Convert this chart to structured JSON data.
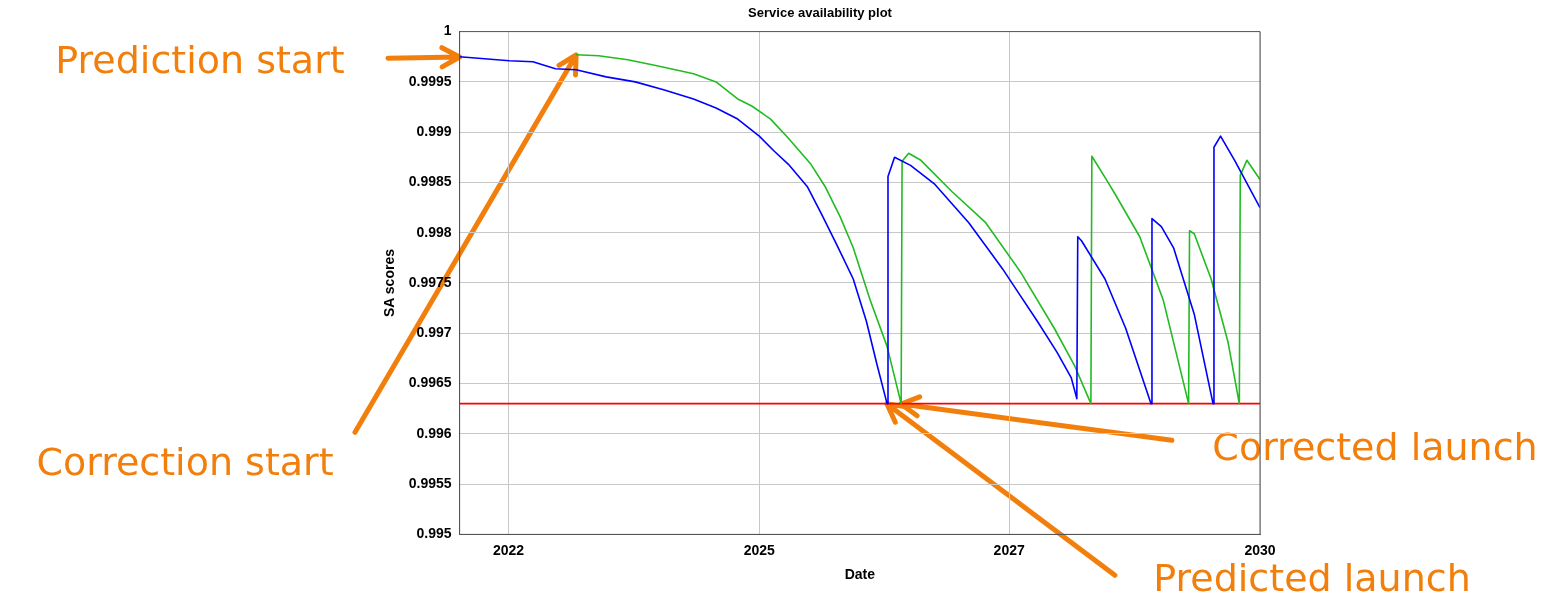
{
  "chart_data": {
    "type": "line",
    "title": "Service availability plot",
    "xlabel": "Date",
    "ylabel": "SA scores",
    "xlim": [
      2021.48,
      2030
    ],
    "xticks": [
      2022,
      {
        "value": 2024.67,
        "label": "2025"
      },
      {
        "value": 2027.33,
        "label": "2027"
      },
      2030
    ],
    "ylim": [
      0.995,
      1
    ],
    "yticks": [
      0.995,
      0.9955,
      0.996,
      0.9965,
      0.997,
      0.9975,
      0.998,
      0.9985,
      0.999,
      0.9995,
      1
    ],
    "grid": true,
    "legend": false,
    "marker": "none",
    "series": [
      {
        "color": "#0000ff",
        "x": [
          2021.48,
          2022.01,
          2022.26,
          2022.5,
          2022.72,
          2023.04,
          2023.35,
          2023.66,
          2023.97,
          2024.21,
          2024.44,
          2024.67,
          2024.83,
          2024.98,
          2025.18,
          2025.33,
          2025.49,
          2025.67,
          2025.81,
          2025.92,
          2026.03,
          2026.04,
          2026.11,
          2026.28,
          2026.54,
          2026.9,
          2027.26,
          2027.63,
          2027.84,
          2027.99,
          2028.05,
          2028.06,
          2028.1,
          2028.35,
          2028.57,
          2028.84,
          2028.85,
          2028.95,
          2029.08,
          2029.3,
          2029.5,
          2029.51,
          2029.58,
          2029.73,
          2030
        ],
        "values": [
          0.99975,
          0.99971,
          0.9997,
          0.99963,
          0.99962,
          0.99955,
          0.9995,
          0.99942,
          0.99933,
          0.99924,
          0.99913,
          0.99896,
          0.99881,
          0.99868,
          0.99846,
          0.99819,
          0.99789,
          0.99754,
          0.99712,
          0.9967,
          0.9963,
          0.99856,
          0.99875,
          0.99867,
          0.99848,
          0.9981,
          0.99764,
          0.99712,
          0.99681,
          0.99656,
          0.99635,
          0.99796,
          0.99792,
          0.99754,
          0.99705,
          0.9963,
          0.99814,
          0.99806,
          0.99785,
          0.99719,
          0.9963,
          0.99885,
          0.99896,
          0.99872,
          0.99825
        ]
      },
      {
        "color": "#22bb22",
        "x": [
          2022.72,
          2022.96,
          2023.27,
          2023.58,
          2023.97,
          2024.21,
          2024.44,
          2024.59,
          2024.79,
          2024.98,
          2025.22,
          2025.37,
          2025.53,
          2025.67,
          2025.85,
          2026.03,
          2026.18,
          2026.19,
          2026.26,
          2026.39,
          2026.72,
          2027.08,
          2027.45,
          2027.81,
          2028.03,
          2028.2,
          2028.21,
          2028.35,
          2028.46,
          2028.72,
          2028.97,
          2029.24,
          2029.25,
          2029.3,
          2029.48,
          2029.66,
          2029.78,
          2029.79,
          2029.86,
          2030
        ],
        "values": [
          0.99977,
          0.99976,
          0.99972,
          0.99966,
          0.99958,
          0.9995,
          0.99933,
          0.99926,
          0.99913,
          0.99894,
          0.99868,
          0.99846,
          0.99816,
          0.99785,
          0.99733,
          0.99687,
          0.9963,
          0.99871,
          0.99879,
          0.99872,
          0.99841,
          0.9981,
          0.99761,
          0.99705,
          0.99667,
          0.9963,
          0.99876,
          0.99855,
          0.99838,
          0.99796,
          0.99733,
          0.9963,
          0.99802,
          0.99799,
          0.99754,
          0.99691,
          0.9963,
          0.99857,
          0.99872,
          0.99853
        ]
      }
    ],
    "ref_lines": [
      {
        "axis": "y",
        "value": 0.9963,
        "color": "#ff0000"
      }
    ],
    "annotations": [
      {
        "text": "Prediction start",
        "x": 2021.48,
        "y": 0.99975
      },
      {
        "text": "Correction start",
        "x": 2022.72,
        "y": 0.99977
      },
      {
        "text": "Corrected launch",
        "x": 2026.18,
        "y": 0.9963
      },
      {
        "text": "Predicted launch",
        "x": 2026.03,
        "y": 0.9963
      }
    ]
  }
}
